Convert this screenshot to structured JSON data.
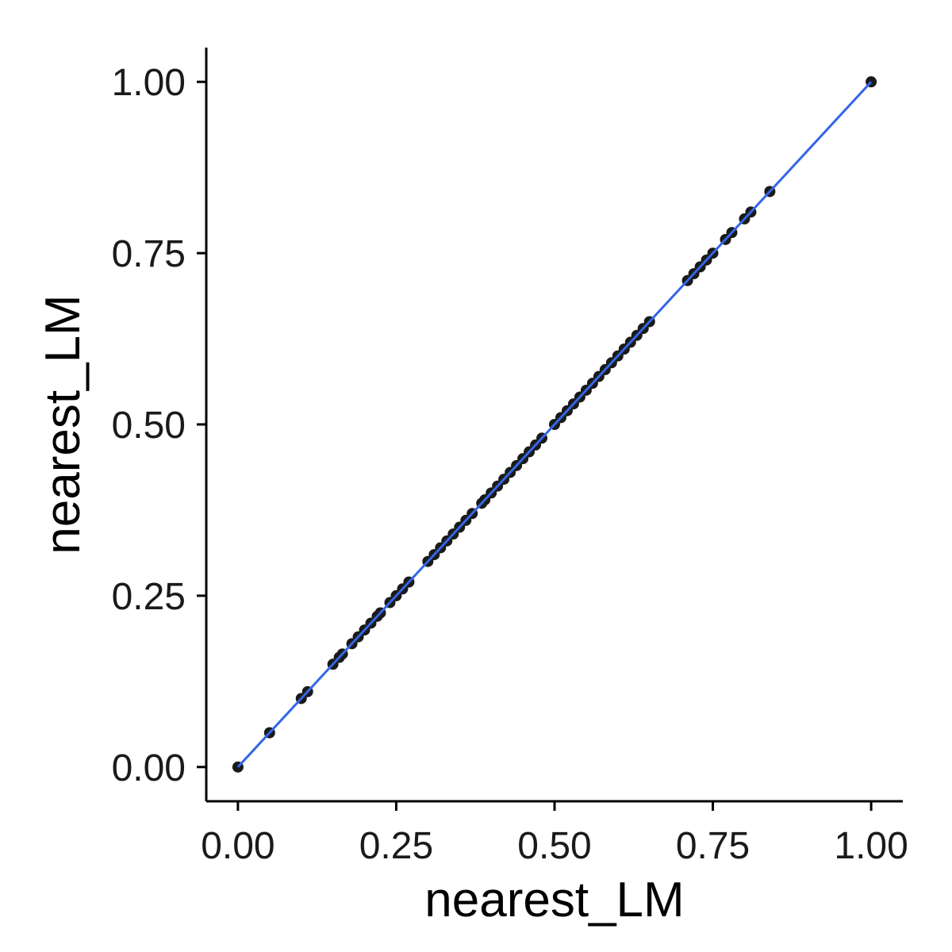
{
  "chart_data": {
    "type": "scatter",
    "title": "",
    "xlabel": "nearest_LM",
    "ylabel": "nearest_LM",
    "xlim": [
      -0.05,
      1.05
    ],
    "ylim": [
      -0.05,
      1.05
    ],
    "x_ticks": [
      0.0,
      0.25,
      0.5,
      0.75,
      1.0
    ],
    "x_tick_labels": [
      "0.00",
      "0.25",
      "0.50",
      "0.75",
      "1.00"
    ],
    "y_ticks": [
      0.0,
      0.25,
      0.5,
      0.75,
      1.0
    ],
    "y_tick_labels": [
      "0.00",
      "0.25",
      "0.50",
      "0.75",
      "1.00"
    ],
    "grid": false,
    "legend": "none",
    "point_color": "#1a1a1a",
    "fit_line_color": "#3366e6",
    "fit_line": {
      "x": [
        0.0,
        1.0
      ],
      "y": [
        0.0,
        1.0
      ]
    },
    "points": {
      "x": [
        0.0,
        0.05,
        0.1,
        0.11,
        0.15,
        0.16,
        0.165,
        0.18,
        0.19,
        0.2,
        0.21,
        0.22,
        0.225,
        0.24,
        0.25,
        0.26,
        0.27,
        0.3,
        0.31,
        0.32,
        0.33,
        0.34,
        0.35,
        0.36,
        0.37,
        0.385,
        0.39,
        0.4,
        0.41,
        0.42,
        0.43,
        0.44,
        0.45,
        0.46,
        0.47,
        0.48,
        0.5,
        0.51,
        0.52,
        0.53,
        0.54,
        0.55,
        0.56,
        0.57,
        0.58,
        0.59,
        0.6,
        0.61,
        0.62,
        0.63,
        0.64,
        0.65,
        0.71,
        0.72,
        0.73,
        0.74,
        0.75,
        0.77,
        0.78,
        0.8,
        0.81,
        0.84,
        1.0
      ],
      "y": [
        0.0,
        0.05,
        0.1,
        0.11,
        0.15,
        0.16,
        0.165,
        0.18,
        0.19,
        0.2,
        0.21,
        0.22,
        0.225,
        0.24,
        0.25,
        0.26,
        0.27,
        0.3,
        0.31,
        0.32,
        0.33,
        0.34,
        0.35,
        0.36,
        0.37,
        0.385,
        0.39,
        0.4,
        0.41,
        0.42,
        0.43,
        0.44,
        0.45,
        0.46,
        0.47,
        0.48,
        0.5,
        0.51,
        0.52,
        0.53,
        0.54,
        0.55,
        0.56,
        0.57,
        0.58,
        0.59,
        0.6,
        0.61,
        0.62,
        0.63,
        0.64,
        0.65,
        0.71,
        0.72,
        0.73,
        0.74,
        0.75,
        0.77,
        0.78,
        0.8,
        0.81,
        0.84,
        1.0
      ]
    }
  }
}
